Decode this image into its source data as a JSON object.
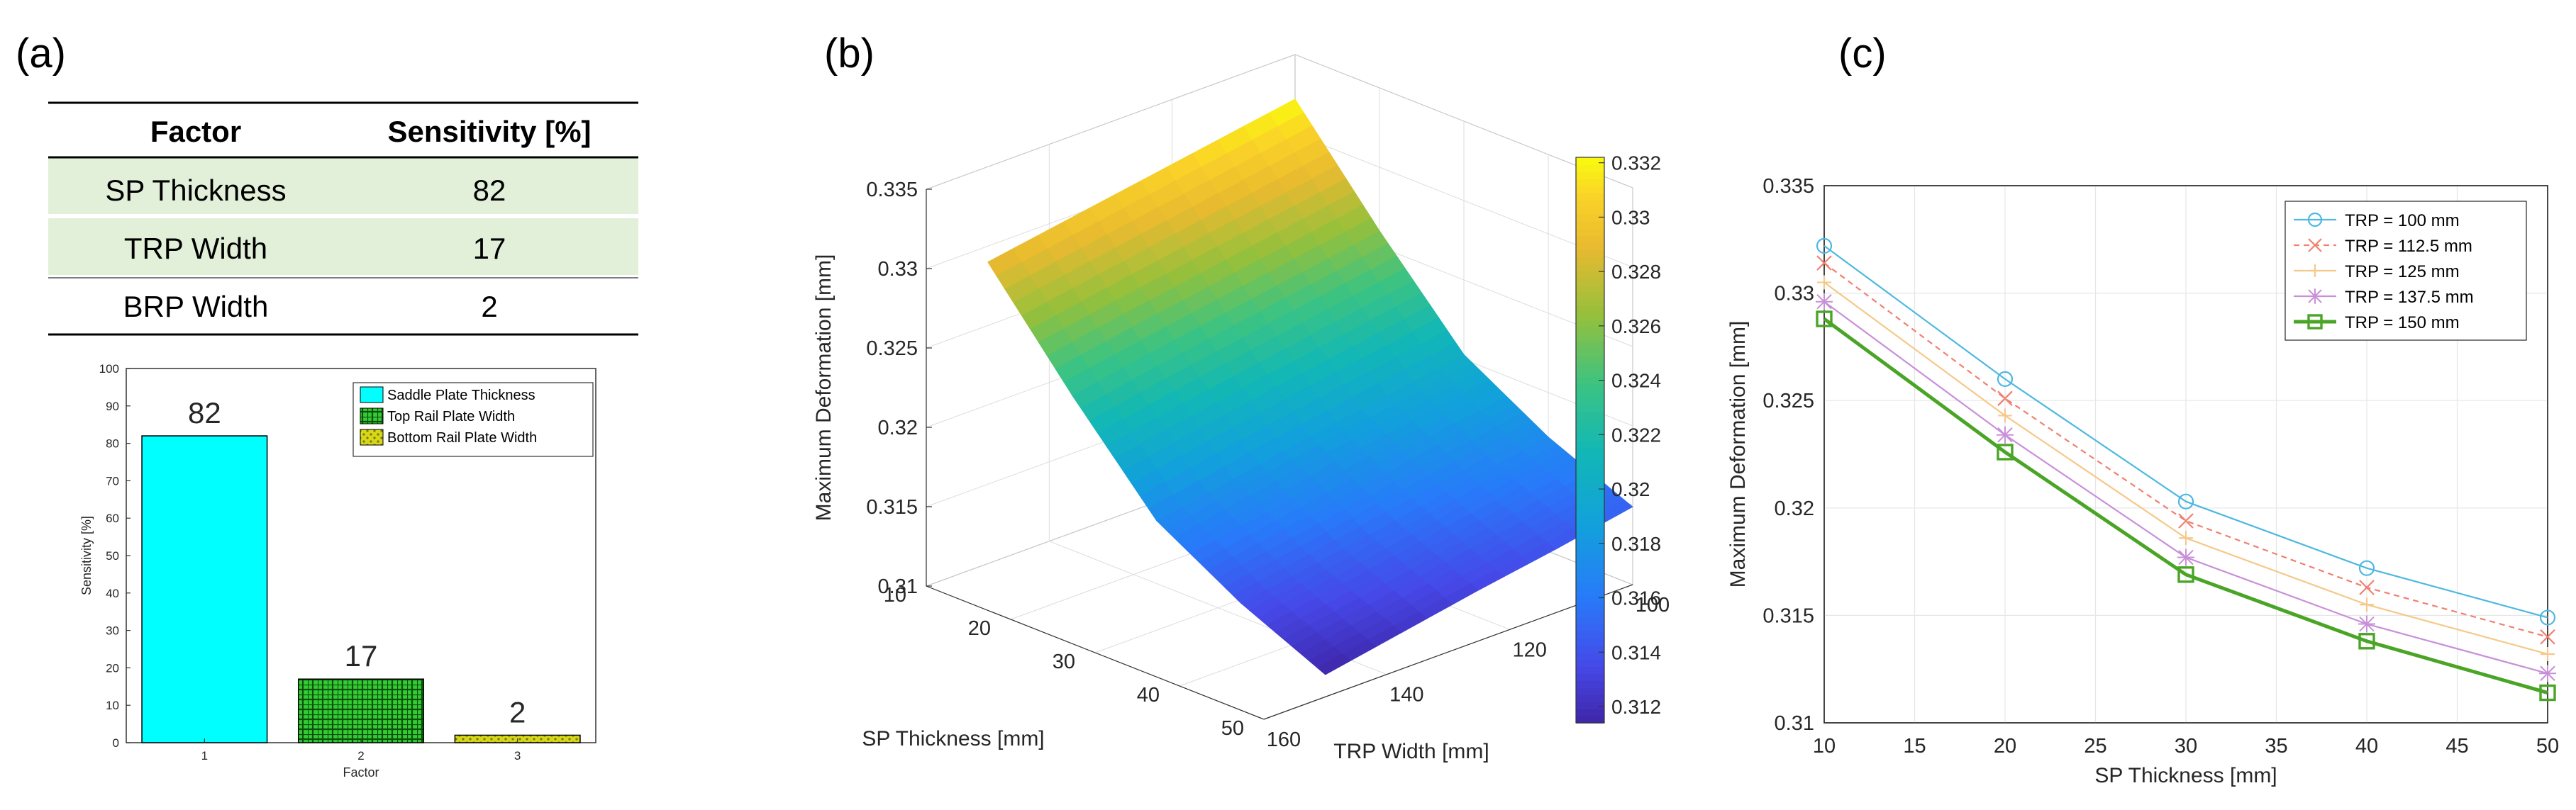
{
  "panels": {
    "a": "(a)",
    "b": "(b)",
    "c": "(c)"
  },
  "sensitivity_table": {
    "headers": [
      "Factor",
      "Sensitivity [%]"
    ],
    "rows": [
      {
        "factor": "SP Thickness",
        "sensitivity": "82",
        "highlight": true
      },
      {
        "factor": "TRP Width",
        "sensitivity": "17",
        "highlight": true
      },
      {
        "factor": "BRP Width",
        "sensitivity": "2",
        "highlight": false
      }
    ],
    "highlight_color": "#e2f0d9"
  },
  "chart_data": [
    {
      "type": "bar",
      "panel": "a",
      "categories": [
        "1",
        "2",
        "3"
      ],
      "values": [
        82,
        17,
        2
      ],
      "data_labels": [
        "82",
        "17",
        "2"
      ],
      "xlabel": "Factor",
      "ylabel": "Sensitivity [%]",
      "ylim": [
        0,
        100
      ],
      "yticks": [
        "0",
        "10",
        "20",
        "30",
        "40",
        "50",
        "60",
        "70",
        "80",
        "90",
        "100"
      ],
      "legend": {
        "placement": "top-right",
        "entries": [
          {
            "label": "Saddle Plate Thickness",
            "color": "#00ffff",
            "pattern": "solid"
          },
          {
            "label": "Top Rail Plate Width",
            "color": "#33cc33",
            "pattern": "grid"
          },
          {
            "label": "Bottom Rail Plate Width",
            "color": "#cccc00",
            "pattern": "dots"
          }
        ]
      }
    },
    {
      "type": "surface",
      "panel": "b",
      "x": [
        10,
        20,
        30,
        40,
        50
      ],
      "y": [
        100,
        112.5,
        125,
        137.5,
        150
      ],
      "z": [
        [
          0.3322,
          0.3314,
          0.3306,
          0.3298,
          0.329
        ],
        [
          0.326,
          0.3252,
          0.3244,
          0.3236,
          0.3227
        ],
        [
          0.3203,
          0.3195,
          0.3187,
          0.3178,
          0.3169
        ],
        [
          0.3172,
          0.3164,
          0.3155,
          0.3146,
          0.3138
        ],
        [
          0.3149,
          0.314,
          0.3132,
          0.3123,
          0.3114
        ]
      ],
      "xlabel": "SP Thickness [mm]",
      "ylabel": "TRP Width [mm]",
      "zlabel": "Maximum Deformation [mm]",
      "xticks": [
        "10",
        "20",
        "30",
        "40",
        "50"
      ],
      "yticks": [
        "100",
        "120",
        "140",
        "160"
      ],
      "zticks": [
        "0.31",
        "0.315",
        "0.32",
        "0.325",
        "0.33",
        "0.335"
      ],
      "colorbar": {
        "ticks": [
          "0.312",
          "0.314",
          "0.316",
          "0.318",
          "0.32",
          "0.322",
          "0.324",
          "0.326",
          "0.328",
          "0.33",
          "0.332"
        ],
        "range": [
          0.3114,
          0.3322
        ],
        "colormap": "parula"
      }
    },
    {
      "type": "line",
      "panel": "c",
      "x": [
        10,
        20,
        30,
        40,
        50
      ],
      "series": [
        {
          "name": "TRP = 100 mm",
          "values": [
            0.3322,
            0.326,
            0.3203,
            0.3172,
            0.3149
          ],
          "color": "#4db8e0",
          "marker": "circle",
          "dash": "solid"
        },
        {
          "name": "TRP = 112.5 mm",
          "values": [
            0.3314,
            0.3251,
            0.3194,
            0.3163,
            0.314
          ],
          "color": "#f08070",
          "marker": "x",
          "dash": "dashed"
        },
        {
          "name": "TRP = 125 mm",
          "values": [
            0.3305,
            0.3243,
            0.3186,
            0.3155,
            0.3132
          ],
          "color": "#f5c98a",
          "marker": "plus",
          "dash": "solid"
        },
        {
          "name": "TRP = 137.5 mm",
          "values": [
            0.3296,
            0.3234,
            0.3177,
            0.3146,
            0.3123
          ],
          "color": "#c890d8",
          "marker": "star",
          "dash": "solid"
        },
        {
          "name": "TRP = 150 mm",
          "values": [
            0.3288,
            0.3226,
            0.3169,
            0.3138,
            0.3114
          ],
          "color": "#4aa526",
          "marker": "square",
          "dash": "solid"
        }
      ],
      "xlabel": "SP Thickness [mm]",
      "ylabel": "Maximum Deformation [mm]",
      "xlim": [
        10,
        50
      ],
      "ylim": [
        0.31,
        0.335
      ],
      "xticks": [
        "10",
        "15",
        "20",
        "25",
        "30",
        "35",
        "40",
        "45",
        "50"
      ],
      "yticks": [
        "0.31",
        "0.315",
        "0.32",
        "0.325",
        "0.33",
        "0.335"
      ],
      "grid": true,
      "legend": {
        "placement": "top-right"
      }
    }
  ]
}
